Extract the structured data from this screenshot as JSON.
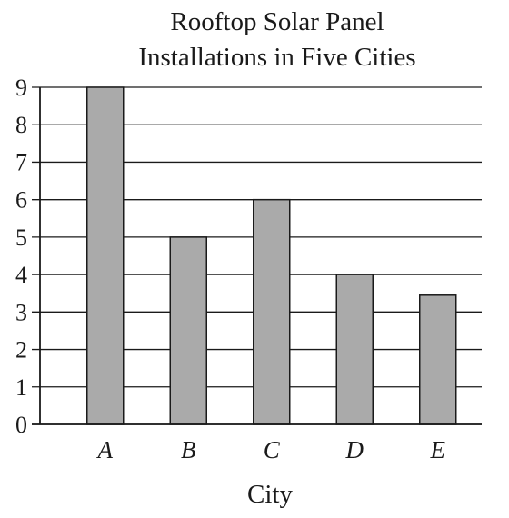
{
  "chart_data": {
    "type": "bar",
    "title": [
      "Rooftop Solar Panel",
      "Installations in Five Cities"
    ],
    "xlabel": "City",
    "ylabel": "",
    "categories": [
      "A",
      "B",
      "C",
      "D",
      "E"
    ],
    "values": [
      9,
      5,
      6,
      4,
      3.45
    ],
    "ylim": [
      0,
      9
    ],
    "yticks": [
      "0",
      "1",
      "2",
      "3",
      "4",
      "5",
      "6",
      "7",
      "8",
      "9"
    ],
    "grid": true,
    "colors": {
      "bar_fill": "#aaaaaa",
      "bar_stroke": "#1a1a1a",
      "grid": "#1a1a1a",
      "text": "#1a1a1a"
    }
  }
}
